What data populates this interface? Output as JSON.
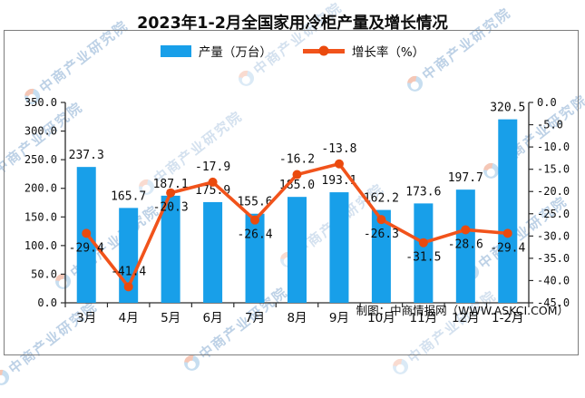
{
  "watermark": {
    "text": "中商产业研究院",
    "logo_colors": {
      "blue": "#a9cbe8",
      "red": "#f0a78d"
    }
  },
  "footer": {
    "credit": "制图：中商情报网（WWW.ASKCI.COM）"
  },
  "chart_data": {
    "type": "bar",
    "combo": "bar+line",
    "title": "2023年1-2月全国家用冷柜产量及增长情况",
    "categories": [
      "3月",
      "4月",
      "5月",
      "6月",
      "7月",
      "8月",
      "9月",
      "10月",
      "11月",
      "12月",
      "1-2月"
    ],
    "series": [
      {
        "name": "产量（万台）",
        "type": "bar",
        "axis": "left",
        "color": "#189fe9",
        "values": [
          237.3,
          165.7,
          187.1,
          175.9,
          155.6,
          185.0,
          193.1,
          162.2,
          173.6,
          197.7,
          320.5
        ]
      },
      {
        "name": "增长率（%）",
        "type": "line",
        "axis": "right",
        "color": "#f1531b",
        "marker_color": "#ea4a0e",
        "values": [
          -29.4,
          -41.4,
          -20.3,
          -17.9,
          -26.4,
          -16.2,
          -13.8,
          -26.3,
          -31.5,
          -28.6,
          -29.4
        ],
        "label_side": [
          "below",
          "above",
          "below",
          "above",
          "below",
          "above",
          "above",
          "below",
          "below",
          "below",
          "below"
        ]
      }
    ],
    "left_axis": {
      "min": 0,
      "max": 350,
      "step": 50,
      "tick_labels": [
        "350.0",
        "300.0",
        "250.0",
        "200.0",
        "150.0",
        "100.0",
        "50.0",
        "0.0"
      ]
    },
    "right_axis": {
      "min": -45,
      "max": 0,
      "step": 5,
      "tick_labels": [
        "0.0",
        "-5.0",
        "-10.0",
        "-15.0",
        "-20.0",
        "-25.0",
        "-30.0",
        "-35.0",
        "-40.0",
        "-45.0"
      ]
    },
    "grid": false,
    "legend_position": "top-center"
  }
}
